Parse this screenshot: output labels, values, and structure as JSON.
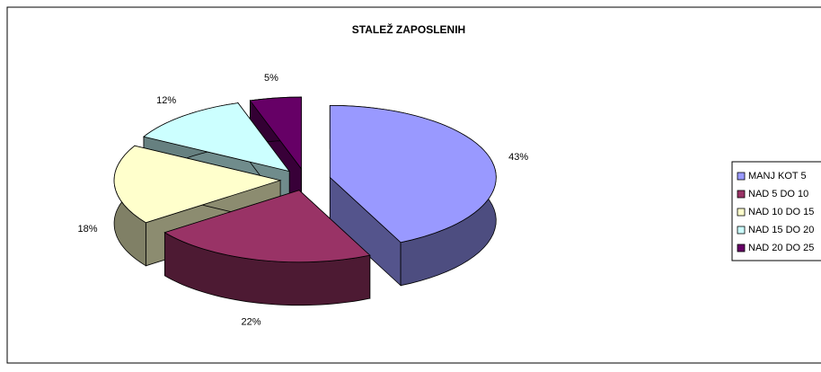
{
  "chart_data": {
    "type": "pie3d",
    "title": "STALEŽ ZAPOSLENIH",
    "categories": [
      "MANJ KOT 5",
      "NAD 5 DO 10",
      "NAD 10 DO 15",
      "NAD 15 DO 20",
      "NAD 20 DO 25"
    ],
    "values": [
      43,
      22,
      18,
      12,
      5
    ],
    "value_labels": [
      "43%",
      "22%",
      "18%",
      "12%",
      "5%"
    ],
    "colors": [
      "#9999ff",
      "#993366",
      "#ffffcc",
      "#ccffff",
      "#660066"
    ],
    "legend": "right"
  }
}
